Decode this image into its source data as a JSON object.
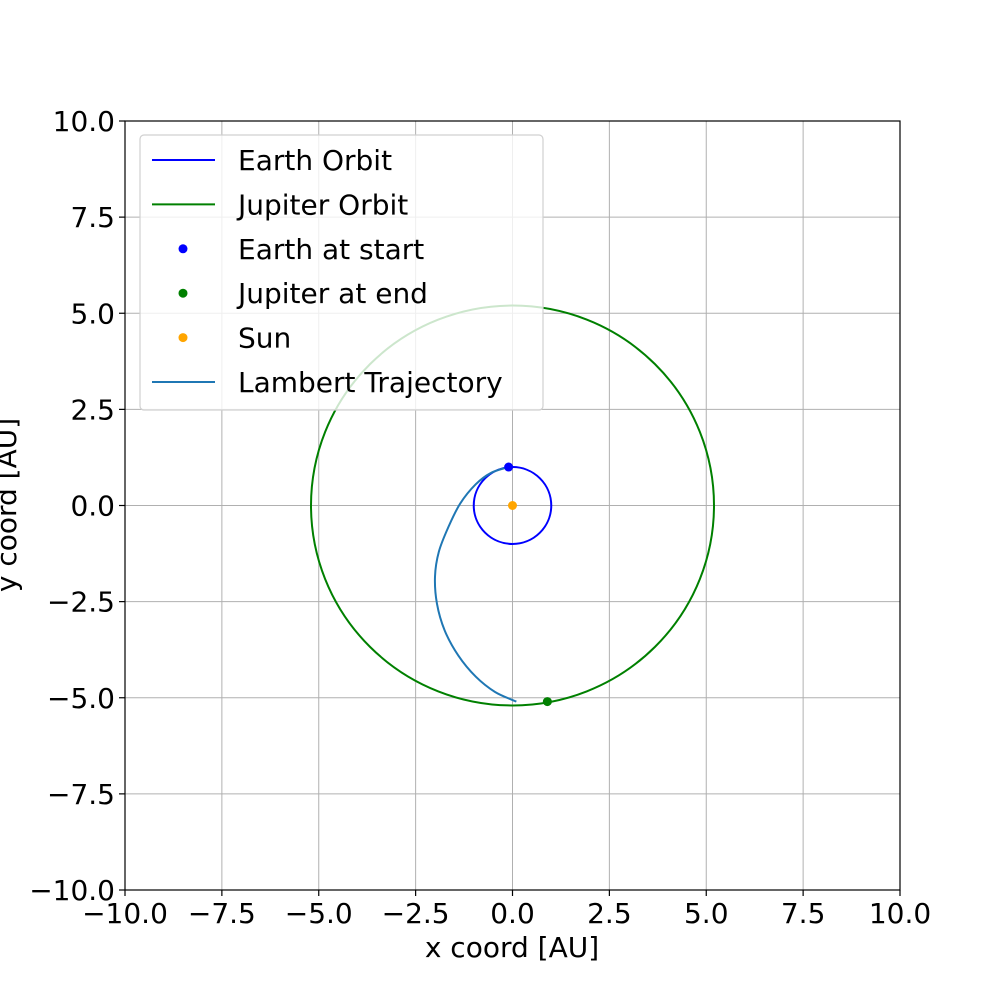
{
  "chart_data": {
    "type": "line",
    "title": "",
    "xlabel": "x coord [AU]",
    "ylabel": "y coord [AU]",
    "xlim": [
      -10,
      10
    ],
    "ylim": [
      -10,
      10
    ],
    "xticks": [
      -10,
      -7.5,
      -5,
      -2.5,
      0,
      2.5,
      5,
      7.5,
      10
    ],
    "yticks": [
      -10,
      -7.5,
      -5,
      -2.5,
      0,
      2.5,
      5,
      7.5,
      10
    ],
    "xtick_labels": [
      "−10.0",
      "−7.5",
      "−5.0",
      "−2.5",
      "0.0",
      "2.5",
      "5.0",
      "7.5",
      "10.0"
    ],
    "ytick_labels": [
      "−10.0",
      "−7.5",
      "−5.0",
      "−2.5",
      "0.0",
      "2.5",
      "5.0",
      "7.5",
      "10.0"
    ],
    "grid": true,
    "legend_position": "top-left",
    "series": [
      {
        "name": "Earth Orbit",
        "kind": "circle",
        "center": [
          0,
          0
        ],
        "radius": 1.0,
        "color": "#0000ff"
      },
      {
        "name": "Jupiter Orbit",
        "kind": "circle",
        "center": [
          0,
          0
        ],
        "radius": 5.2,
        "color": "#008000"
      },
      {
        "name": "Earth at start",
        "kind": "point",
        "x": -0.1,
        "y": 1.0,
        "color": "#0000ff"
      },
      {
        "name": "Jupiter at end",
        "kind": "point",
        "x": 0.9,
        "y": -5.1,
        "color": "#008000"
      },
      {
        "name": "Sun",
        "kind": "point",
        "x": 0.0,
        "y": 0.0,
        "color": "#ffa500"
      },
      {
        "name": "Lambert Trajectory",
        "kind": "line",
        "color": "#1f77b4",
        "points": [
          [
            -0.1,
            1.0
          ],
          [
            -0.55,
            0.85
          ],
          [
            -0.95,
            0.55
          ],
          [
            -1.35,
            0.05
          ],
          [
            -1.65,
            -0.55
          ],
          [
            -1.9,
            -1.2
          ],
          [
            -2.0,
            -1.85
          ],
          [
            -1.95,
            -2.55
          ],
          [
            -1.75,
            -3.25
          ],
          [
            -1.4,
            -3.9
          ],
          [
            -0.95,
            -4.45
          ],
          [
            -0.45,
            -4.85
          ],
          [
            0.1,
            -5.1
          ]
        ]
      }
    ]
  }
}
